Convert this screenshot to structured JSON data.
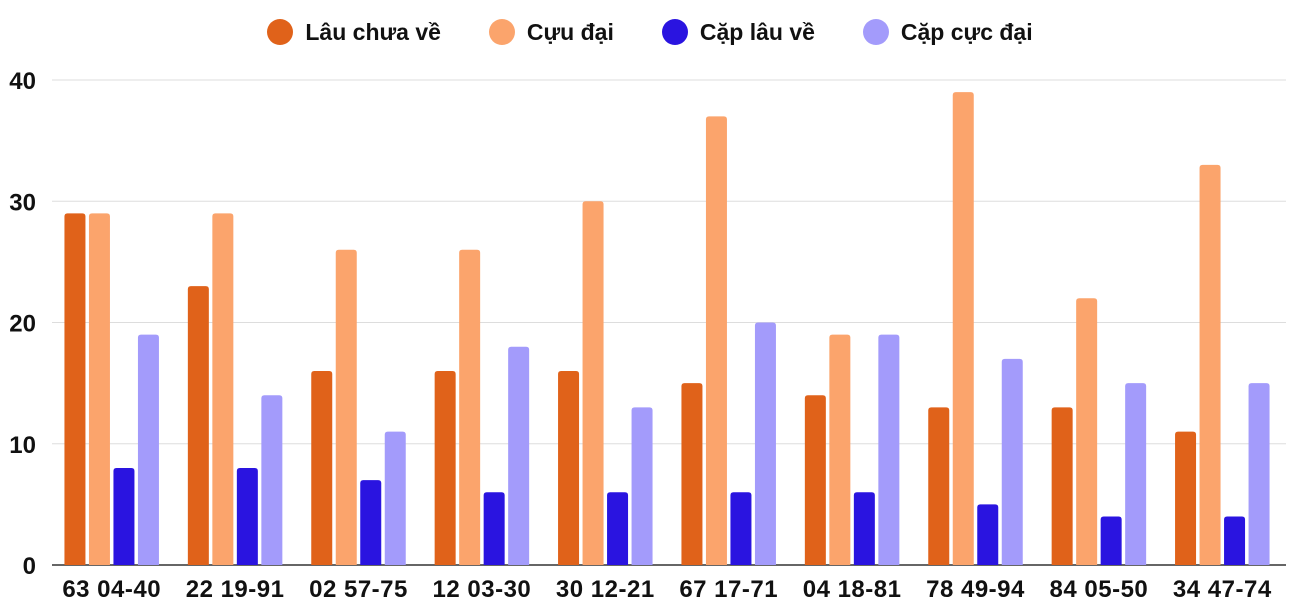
{
  "chart_data": {
    "type": "bar",
    "categories": [
      "63 04-40",
      "22 19-91",
      "02 57-75",
      "12 03-30",
      "30 12-21",
      "67 17-71",
      "04 18-81",
      "78 49-94",
      "84 05-50",
      "34 47-74"
    ],
    "series": [
      {
        "name": "Lâu chưa về",
        "color": "#e0621a",
        "values": [
          29,
          23,
          16,
          16,
          16,
          15,
          14,
          13,
          13,
          11
        ]
      },
      {
        "name": "Cựu đại",
        "color": "#fba46c",
        "values": [
          29,
          29,
          26,
          26,
          30,
          37,
          19,
          39,
          22,
          33
        ]
      },
      {
        "name": "Cặp lâu về",
        "color": "#2a14e0",
        "values": [
          8,
          8,
          7,
          6,
          6,
          6,
          6,
          5,
          4,
          4
        ]
      },
      {
        "name": "Cặp cực đại",
        "color": "#a39bfb",
        "values": [
          19,
          14,
          11,
          18,
          13,
          20,
          19,
          17,
          15,
          15
        ]
      }
    ],
    "yticks": [
      0,
      10,
      20,
      30,
      40
    ],
    "ylim": [
      0,
      40
    ],
    "grid": true,
    "legend_position": "top-center",
    "xlabel": "",
    "ylabel": "",
    "title": ""
  }
}
